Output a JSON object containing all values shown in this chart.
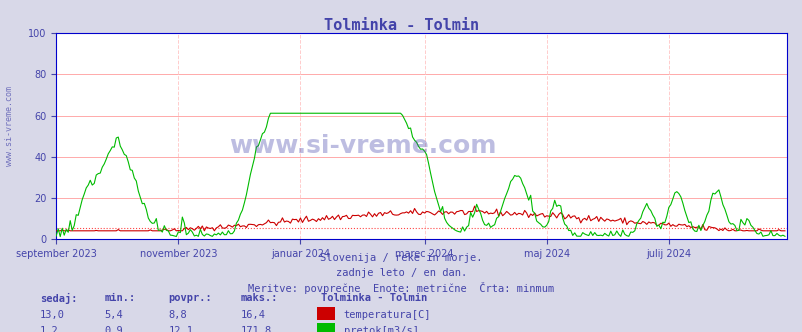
{
  "title": "Tolminka - Tolmin",
  "title_color": "#4444aa",
  "bg_color": "#d8d8e8",
  "plot_bg_color": "#ffffff",
  "grid_color_h": "#ffaaaa",
  "grid_color_v": "#ffcccc",
  "xlabel_color": "#4444aa",
  "ylabel_color": "#4444aa",
  "text_color": "#4444aa",
  "watermark": "www.si-vreme.com",
  "subtitle1": "Slovenija / reke in morje.",
  "subtitle2": "zadnje leto / en dan.",
  "subtitle3": "Meritve: povprečne  Enote: metrične  Črta: minmum",
  "legend_title": "Tolminka - Tolmin",
  "legend_items": [
    "temperatura[C]",
    "pretok[m3/s]"
  ],
  "legend_colors": [
    "#cc0000",
    "#00bb00"
  ],
  "table_headers": [
    "sedaj:",
    "min.:",
    "povpr.:",
    "maks.:"
  ],
  "table_row1": [
    "13,0",
    "5,4",
    "8,8",
    "16,4"
  ],
  "table_row2": [
    "1,2",
    "0,9",
    "12,1",
    "171,8"
  ],
  "xlim": [
    0,
    365
  ],
  "ylim": [
    0,
    100
  ],
  "yticks": [
    0,
    20,
    40,
    60,
    80,
    100
  ],
  "xtick_positions": [
    0,
    61,
    122,
    184,
    245,
    306,
    365
  ],
  "xtick_labels": [
    "september 2023",
    "november 2023",
    "januar 2024",
    "marec 2024",
    "maj 2024",
    "julij 2024",
    ""
  ],
  "temp_min_line": 5.4,
  "flow_min_line": 0.9,
  "temp_color": "#cc0000",
  "flow_color": "#00bb00",
  "min_line_color": "#ff4444",
  "axis_color": "#0000cc"
}
